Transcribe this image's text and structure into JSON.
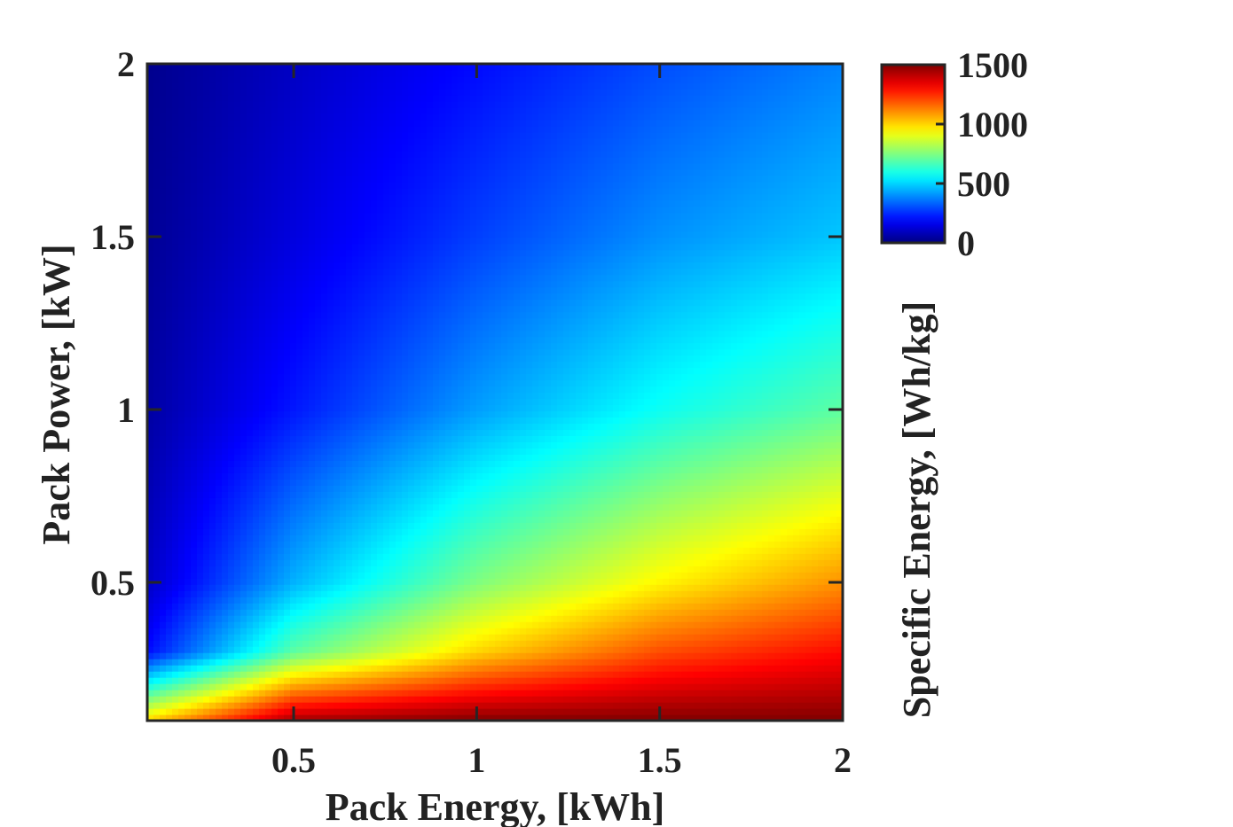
{
  "chart_data": {
    "type": "heatmap",
    "title": "",
    "xlabel": "Pack Energy, [kWh]",
    "ylabel": "Pack Power, [kW]",
    "xlim": [
      0.1,
      2
    ],
    "ylim": [
      0.1,
      2
    ],
    "xticks": [
      0.5,
      1,
      1.5,
      2
    ],
    "yticks": [
      0.5,
      1,
      1.5,
      2
    ],
    "xtick_labels": [
      "0.5",
      "1",
      "1.5",
      "2"
    ],
    "ytick_labels": [
      "0.5",
      "1",
      "1.5",
      "2"
    ],
    "colormap": "jet",
    "colorbar": {
      "label": "Specific Energy, [Wh/kg]",
      "range": [
        0,
        1500
      ],
      "ticks": [
        0,
        500,
        1000,
        1500
      ],
      "tick_labels": [
        "0",
        "500",
        "1000",
        "1500"
      ]
    },
    "x": [
      0.1,
      0.5,
      1.0,
      1.5,
      2.0
    ],
    "y": [
      0.1,
      0.3,
      0.5,
      1.0,
      1.5,
      2.0
    ],
    "z": [
      [
        1000,
        1450,
        1500,
        1500,
        1500
      ],
      [
        200,
        700,
        1000,
        1200,
        1300
      ],
      [
        100,
        450,
        750,
        950,
        1100
      ],
      [
        50,
        220,
        420,
        580,
        700
      ],
      [
        30,
        140,
        280,
        400,
        480
      ],
      [
        20,
        100,
        200,
        300,
        380
      ]
    ]
  }
}
